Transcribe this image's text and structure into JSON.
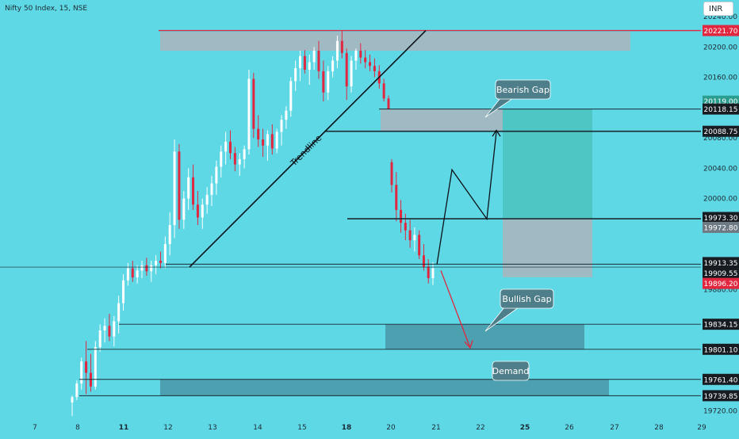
{
  "header": {
    "symbol": "Nifty 50 Index, 15, NSE",
    "currency": "INR"
  },
  "colors": {
    "background": "#5fd8e6",
    "candle_up": "#ffffff",
    "candle_down": "#e0273f",
    "resistance_line": "#e0273f",
    "grey_zone": "#a7b7c0",
    "teal_zone": "#4dc6c4",
    "dark_zone": "#4b9aa8",
    "callout": "#4e7e8a",
    "badge_red": "#e0273f",
    "badge_green": "#2a9d8f",
    "badge_black": "#161c22",
    "badge_grey": "#6d7a84"
  },
  "chart_data": {
    "type": "candlestick",
    "symbol": "Nifty 50 Index",
    "timeframe": "15",
    "exchange": "NSE",
    "ylim": [
      19712,
      20262
    ],
    "y_ticks": [
      20240.0,
      20200.0,
      20160.0,
      20080.0,
      20040.0,
      20000.0,
      19960.0,
      19880.0,
      19720.0
    ],
    "x_ticks": [
      "7",
      "8",
      "11",
      "12",
      "13",
      "14",
      "15",
      "18",
      "20",
      "21",
      "22",
      "25",
      "26",
      "27",
      "28",
      "29"
    ],
    "x_ticks_bold": [
      "11",
      "18",
      "25"
    ],
    "price_badges": [
      {
        "label": "20221.70",
        "value": 20221.7,
        "style": "red"
      },
      {
        "label": "20119.00",
        "value": 20128.5,
        "style": "green"
      },
      {
        "label": "20118.15",
        "value": 20118.15,
        "style": "black"
      },
      {
        "label": "20088.75",
        "value": 20088.75,
        "style": "black"
      },
      {
        "label": "19973.30",
        "value": 19975.0,
        "style": "black"
      },
      {
        "label": "19972.80",
        "value": 19962.0,
        "style": "grey"
      },
      {
        "label": "19913.35",
        "value": 19915.5,
        "style": "black"
      },
      {
        "label": "19909.55",
        "value": 19902.0,
        "style": "black"
      },
      {
        "label": "19896.20",
        "value": 19888.0,
        "style": "red"
      },
      {
        "label": "19834.15",
        "value": 19834.15,
        "style": "black"
      },
      {
        "label": "19801.10",
        "value": 19801.1,
        "style": "black"
      },
      {
        "label": "19761.40",
        "value": 19761.4,
        "style": "black"
      },
      {
        "label": "19739.85",
        "value": 19739.85,
        "style": "black"
      }
    ],
    "horizontal_levels": [
      20221.7,
      20118.15,
      20088.75,
      19973.3,
      19913.35,
      19909.55,
      19834.15,
      19801.1,
      19761.4,
      19739.85
    ],
    "zones": [
      {
        "name": "supply",
        "low": 20195,
        "high": 20220
      },
      {
        "label": "Bearish Gap",
        "low": 20088.75,
        "high": 20118.15
      },
      {
        "label": "Bullish Gap",
        "low": 19801.1,
        "high": 19834.15
      },
      {
        "label": "Demand",
        "low": 19739.85,
        "high": 19761.4
      },
      {
        "name": "target",
        "low": 19973.3,
        "high": 20118.15
      },
      {
        "name": "stop",
        "low": 19896.2,
        "high": 19973.3
      }
    ],
    "trendline_label": "Trendline",
    "candles": [
      [
        19731,
        19740,
        19713,
        19738
      ],
      [
        19738,
        19760,
        19734,
        19756
      ],
      [
        19756,
        19790,
        19748,
        19785
      ],
      [
        19785,
        19812,
        19742,
        19770
      ],
      [
        19770,
        19795,
        19745,
        19752
      ],
      [
        19752,
        19812,
        19748,
        19804
      ],
      [
        19804,
        19834,
        19798,
        19826
      ],
      [
        19826,
        19842,
        19810,
        19832
      ],
      [
        19832,
        19848,
        19812,
        19818
      ],
      [
        19818,
        19845,
        19805,
        19838
      ],
      [
        19838,
        19872,
        19822,
        19862
      ],
      [
        19862,
        19900,
        19852,
        19892
      ],
      [
        19892,
        19915,
        19885,
        19908
      ],
      [
        19908,
        19918,
        19890,
        19896
      ],
      [
        19896,
        19912,
        19888,
        19905
      ],
      [
        19905,
        19918,
        19895,
        19912
      ],
      [
        19912,
        19922,
        19898,
        19904
      ],
      [
        19904,
        19918,
        19890,
        19912
      ],
      [
        19912,
        19925,
        19900,
        19918
      ],
      [
        19918,
        19930,
        19908,
        19915
      ],
      [
        19915,
        19950,
        19908,
        19940
      ],
      [
        19940,
        19982,
        19925,
        19965
      ],
      [
        19965,
        20078,
        19948,
        20062
      ],
      [
        20062,
        20072,
        19960,
        19972
      ],
      [
        19972,
        20010,
        19960,
        20000
      ],
      [
        20000,
        20040,
        19985,
        20028
      ],
      [
        20028,
        20045,
        19985,
        19992
      ],
      [
        19992,
        20010,
        19965,
        19975
      ],
      [
        19975,
        20000,
        19960,
        19992
      ],
      [
        19992,
        20015,
        19980,
        20005
      ],
      [
        20005,
        20030,
        19990,
        20020
      ],
      [
        20020,
        20050,
        20005,
        20042
      ],
      [
        20042,
        20070,
        20028,
        20062
      ],
      [
        20062,
        20088,
        20045,
        20075
      ],
      [
        20075,
        20090,
        20052,
        20060
      ],
      [
        20060,
        20068,
        20036,
        20045
      ],
      [
        20045,
        20060,
        20030,
        20052
      ],
      [
        20052,
        20070,
        20040,
        20065
      ],
      [
        20065,
        20170,
        20058,
        20158
      ],
      [
        20158,
        20166,
        20080,
        20092
      ],
      [
        20092,
        20110,
        20068,
        20078
      ],
      [
        20078,
        20092,
        20055,
        20070
      ],
      [
        20070,
        20090,
        20050,
        20085
      ],
      [
        20085,
        20098,
        20058,
        20066
      ],
      [
        20066,
        20092,
        20060,
        20088
      ],
      [
        20088,
        20110,
        20070,
        20104
      ],
      [
        20104,
        20122,
        20092,
        20116
      ],
      [
        20116,
        20160,
        20108,
        20155
      ],
      [
        20155,
        20182,
        20142,
        20172
      ],
      [
        20172,
        20195,
        20155,
        20188
      ],
      [
        20188,
        20196,
        20165,
        20170
      ],
      [
        20170,
        20190,
        20150,
        20180
      ],
      [
        20180,
        20200,
        20170,
        20195
      ],
      [
        20195,
        20208,
        20158,
        20168
      ],
      [
        20168,
        20182,
        20128,
        20140
      ],
      [
        20140,
        20175,
        20130,
        20168
      ],
      [
        20168,
        20188,
        20160,
        20182
      ],
      [
        20182,
        20215,
        20172,
        20208
      ],
      [
        20208,
        20221.7,
        20185,
        20192
      ],
      [
        20192,
        20198,
        20130,
        20148
      ],
      [
        20148,
        20188,
        20140,
        20182
      ],
      [
        20182,
        20198,
        20170,
        20195
      ],
      [
        20195,
        20205,
        20178,
        20186
      ],
      [
        20186,
        20196,
        20172,
        20180
      ],
      [
        20180,
        20190,
        20168,
        20175
      ],
      [
        20175,
        20185,
        20160,
        20168
      ],
      [
        20168,
        20176,
        20145,
        20152
      ],
      [
        20152,
        20158,
        20128,
        20132
      ],
      [
        20132,
        20136,
        20118,
        20118
      ],
      [
        20048,
        20052,
        20008,
        20018
      ],
      [
        20018,
        20035,
        19970,
        19985
      ],
      [
        19985,
        19998,
        19955,
        19968
      ],
      [
        19968,
        19980,
        19945,
        19958
      ],
      [
        19958,
        19972,
        19935,
        19945
      ],
      [
        19945,
        19962,
        19930,
        19952
      ],
      [
        19952,
        19958,
        19920,
        19925
      ],
      [
        19925,
        19940,
        19905,
        19910
      ],
      [
        19910,
        19920,
        19888,
        19895
      ],
      [
        19895,
        19916,
        19886,
        19908
      ]
    ]
  }
}
